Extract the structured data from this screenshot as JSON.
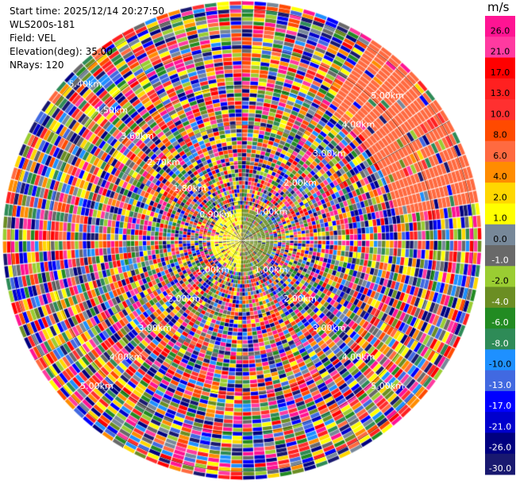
{
  "info": {
    "start_time": "Start time: 2025/12/14 20:27:50",
    "station": "WLS200s-181",
    "field": "Field: VEL",
    "elevation": "Elevation(deg): 35.00",
    "nrays": "NRays: 120"
  },
  "chart_data": {
    "type": "heatmap",
    "projection": "polar-ppi",
    "field": "VEL",
    "elevation_deg": 35.0,
    "nrays": 120,
    "range_rings_km": [
      0.9,
      1.8,
      2.7,
      3.6,
      4.5,
      5.4
    ],
    "range_labels": [
      "1.00km",
      "2.00km",
      "3.00km",
      "4.00km",
      "5.00km"
    ],
    "diagonal_labels": [
      "0.90km",
      "1.80km",
      "2.70km",
      "3.60km",
      "4.50km",
      "5.40km"
    ],
    "colorbar": {
      "unit": "m/s",
      "ticks": [
        "26.0",
        "21.0",
        "17.0",
        "13.0",
        "10.0",
        "8.0",
        "6.0",
        "4.0",
        "2.0",
        "1.0",
        "0.0",
        "-1.0",
        "-2.0",
        "-4.0",
        "-6.0",
        "-8.0",
        "-10.0",
        "-13.0",
        "-17.0",
        "-21.0",
        "-26.0",
        "-30.0"
      ],
      "colors": [
        "#ff1493",
        "#ff3aa0",
        "#ff0000",
        "#ff2020",
        "#ff3030",
        "#ff4a00",
        "#ff6a40",
        "#ff8c00",
        "#ffd700",
        "#ffff00",
        "#778899",
        "#696969",
        "#9acd32",
        "#6b8e23",
        "#228b22",
        "#2e8b57",
        "#1e90ff",
        "#4169e1",
        "#0000ff",
        "#0000cd",
        "#000080",
        "#191970"
      ]
    }
  }
}
